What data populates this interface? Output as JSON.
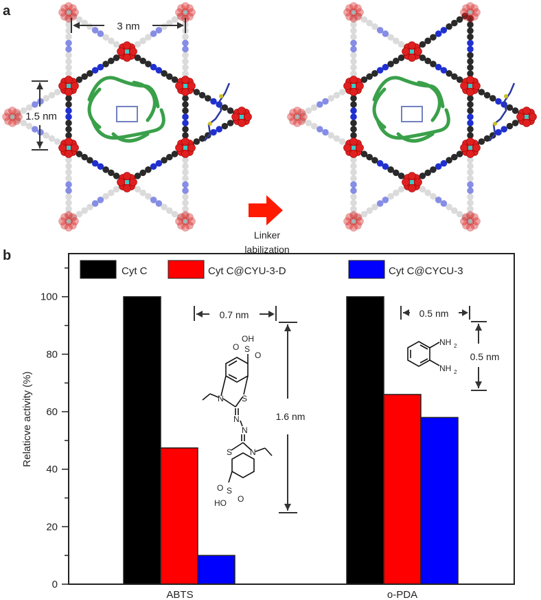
{
  "panel_a": {
    "label": "a",
    "dim_pore": "3 nm",
    "dim_window": "1.5 nm",
    "arrow_caption_line1": "Linker",
    "arrow_caption_line2": "labilization",
    "colors": {
      "node": "#e02020",
      "linker_dark": "#2a2a2a",
      "linker_faded": "#bdbdbd",
      "nitrogen": "#2030d0",
      "protein": "#3aa04a",
      "arrow": "#ff1a00",
      "metal": "#40c8c8"
    }
  },
  "chart_data": {
    "panel_label": "b",
    "type": "bar",
    "categories": [
      "ABTS",
      "o-PDA"
    ],
    "series": [
      {
        "name": "Cyt C",
        "color": "#000000",
        "values": [
          100,
          100
        ]
      },
      {
        "name": "Cyt C@CYU-3-D",
        "color": "#ff0000",
        "values": [
          47.4,
          66
        ]
      },
      {
        "name": "Cyt C@CYCU-3",
        "color": "#0000ff",
        "values": [
          10,
          58
        ]
      }
    ],
    "ylabel": "Relaticve activity (%)",
    "xlabel": "",
    "ylim": [
      0,
      115
    ],
    "yticks": [
      0,
      20,
      40,
      60,
      80,
      100
    ],
    "yminor_step": 10,
    "grid": false,
    "legend_placement": "top",
    "annotations": {
      "abts_width": "0.7 nm",
      "abts_length": "1.6 nm",
      "opda_width": "0.5 nm",
      "opda_height": "0.5 nm",
      "abts_atoms": {
        "oh_top": "OH",
        "o": "O",
        "s": "S",
        "n": "N",
        "ho_bottom": "HO"
      },
      "opda_atoms": {
        "nh2": "NH",
        "sub2": "2"
      }
    }
  }
}
